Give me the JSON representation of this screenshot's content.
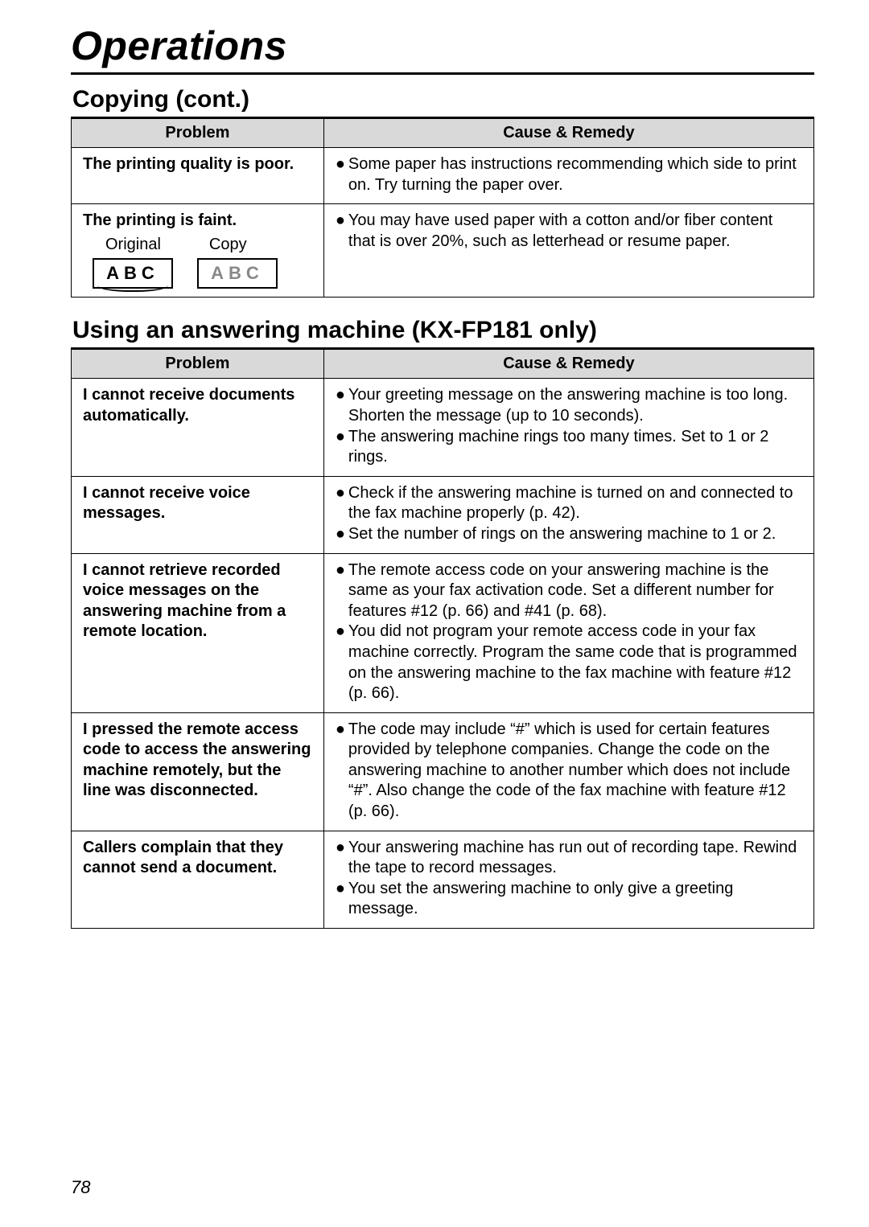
{
  "chapter_title": "Operations",
  "page_number": "78",
  "copying": {
    "title": "Copying (cont.)",
    "header_problem": "Problem",
    "header_remedy": "Cause & Remedy",
    "rows": [
      {
        "problem_text": "The printing quality is poor.",
        "remedy_bullets": [
          "Some paper has instructions recommending which side to print on. Try turning the paper over."
        ]
      },
      {
        "problem_text": "The printing is faint.",
        "original_label": "Original",
        "copy_label": "Copy",
        "abc_original_text": "ABC",
        "abc_copy_text": "ABC",
        "abc_faint_color": "#888888",
        "remedy_bullets": [
          "You may have used paper with a cotton and/or fiber content that is over 20%, such as letterhead or resume paper."
        ]
      }
    ]
  },
  "answering": {
    "title": "Using an answering machine (KX-FP181 only)",
    "header_problem": "Problem",
    "header_remedy": "Cause & Remedy",
    "rows": [
      {
        "problem_text": "I cannot receive documents automatically.",
        "remedy_bullets": [
          "Your greeting message on the answering machine is too long. Shorten the message (up to 10 seconds).",
          "The answering machine rings too many times. Set to 1 or 2 rings."
        ]
      },
      {
        "problem_text": "I cannot receive voice messages.",
        "remedy_bullets": [
          "Check if the answering machine is turned on and connected to the fax machine properly (p. 42).",
          "Set the number of rings on the answering machine to 1 or 2."
        ]
      },
      {
        "problem_text": "I cannot retrieve recorded voice messages on the answering machine from a remote location.",
        "remedy_bullets": [
          "The remote access code on your answering machine is the same as your fax activation code. Set a different number for features #12 (p. 66) and #41 (p. 68).",
          "You did not program your remote access code in your fax machine correctly. Program the same code that is programmed on the answering machine to the fax machine with feature #12 (p. 66)."
        ]
      },
      {
        "problem_text": "I pressed the remote access code to access the answering machine remotely, but the line was disconnected.",
        "remedy_bullets": [
          "The code may include “#” which is used for certain features provided by telephone companies. Change the code on the answering machine to another number which does not include “#”. Also change the code of the fax machine with feature #12 (p. 66)."
        ]
      },
      {
        "problem_text": "Callers complain that they cannot send a document.",
        "remedy_bullets": [
          "Your answering machine has run out of recording tape. Rewind the tape to record messages.",
          "You set the answering machine to only give a greeting message."
        ]
      }
    ]
  },
  "styling": {
    "header_bg": "#d9d9d9",
    "border_color": "#000000",
    "body_font_size_pt": 15,
    "title_font_size_pt": 37,
    "section_font_size_pt": 22
  }
}
